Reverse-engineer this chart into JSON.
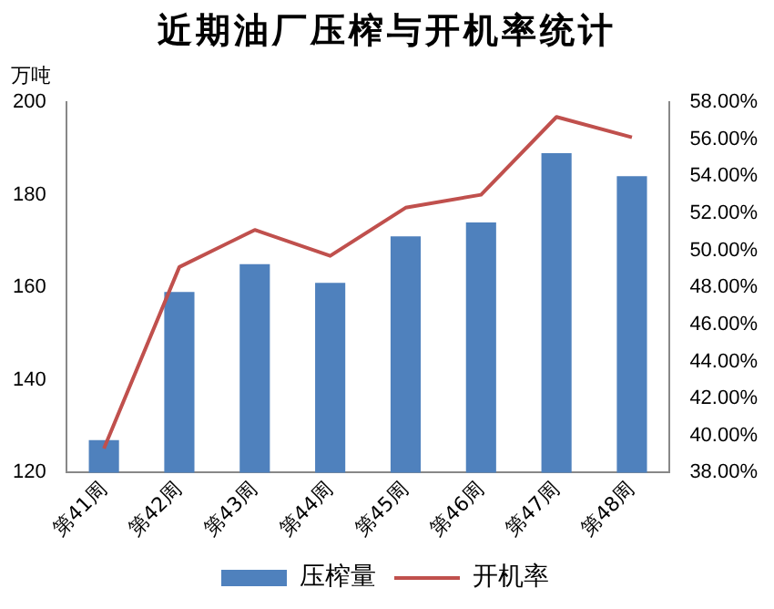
{
  "chart_data": {
    "type": "bar",
    "title": "近期油厂压榨与开机率统计",
    "ylabel": "万吨",
    "categories": [
      "第41周",
      "第42周",
      "第43周",
      "第44周",
      "第45周",
      "第46周",
      "第47周",
      "第48周"
    ],
    "series": [
      {
        "name": "压榨量",
        "color": "#4f81bd",
        "values": [
          127,
          159,
          165,
          161,
          171,
          174,
          189,
          184
        ]
      },
      {
        "name": "开机率",
        "type": "line",
        "axis": "y2",
        "color": "#c0504d",
        "values": [
          39.3,
          49.1,
          51.1,
          49.7,
          52.3,
          53.0,
          57.2,
          56.1
        ]
      }
    ],
    "ylim": [
      120,
      200
    ],
    "yticks": [
      120,
      140,
      160,
      180,
      200
    ],
    "y2lim": [
      38,
      58
    ],
    "y2ticks": [
      {
        "value": 38,
        "label": "38.00%"
      },
      {
        "value": 40,
        "label": "40.00%"
      },
      {
        "value": 42,
        "label": "42.00%"
      },
      {
        "value": 44,
        "label": "44.00%"
      },
      {
        "value": 46,
        "label": "46.00%"
      },
      {
        "value": 48,
        "label": "48.00%"
      },
      {
        "value": 50,
        "label": "50.00%"
      },
      {
        "value": 52,
        "label": "52.00%"
      },
      {
        "value": 54,
        "label": "54.00%"
      },
      {
        "value": 56,
        "label": "56.00%"
      },
      {
        "value": 58,
        "label": "58.00%"
      }
    ],
    "grid": false,
    "legend": "bottom",
    "marker": "none"
  }
}
